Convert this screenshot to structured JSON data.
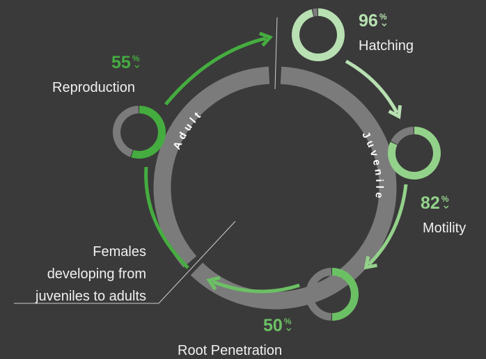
{
  "unit": "%",
  "ring": {
    "segments": [
      "Juvenile",
      "Adult"
    ]
  },
  "callout": [
    "Females",
    "developing from",
    "juveniles to adults"
  ],
  "stages": [
    {
      "label": "Hatching",
      "value": 96,
      "color": "#b8e0b2"
    },
    {
      "label": "Motility",
      "value": 82,
      "color": "#93d28a"
    },
    {
      "label": "Root Penetration",
      "value": 50,
      "color": "#6cc064"
    },
    {
      "label": "Reproduction",
      "value": 55,
      "color": "#45ad3f"
    }
  ]
}
